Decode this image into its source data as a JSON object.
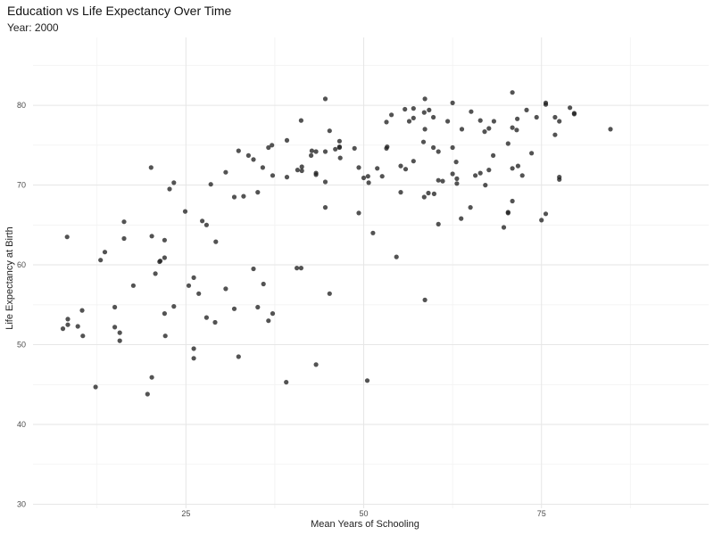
{
  "chart_data": {
    "type": "scatter",
    "title": "Education vs Life Expectancy Over Time",
    "subtitle": "Year: 2000",
    "xlabel": "Mean Years of Schooling",
    "ylabel": "Life Expectancy at Birth",
    "xlim": [
      3.5,
      98.5
    ],
    "ylim": [
      29.5,
      88.5
    ],
    "xticks": [
      25,
      50,
      75
    ],
    "yticks": [
      30,
      40,
      50,
      60,
      70,
      80
    ],
    "grid": true,
    "legend": "none",
    "point_color": "#222222",
    "points": [
      [
        7.7,
        52.0
      ],
      [
        8.3,
        63.5
      ],
      [
        8.4,
        53.2
      ],
      [
        8.4,
        52.5
      ],
      [
        9.8,
        52.3
      ],
      [
        10.4,
        54.3
      ],
      [
        10.5,
        51.1
      ],
      [
        12.3,
        44.7
      ],
      [
        13.0,
        60.6
      ],
      [
        13.6,
        61.6
      ],
      [
        15.0,
        54.7
      ],
      [
        15.0,
        52.2
      ],
      [
        15.7,
        51.5
      ],
      [
        15.7,
        50.5
      ],
      [
        16.3,
        65.4
      ],
      [
        16.3,
        63.3
      ],
      [
        17.6,
        57.4
      ],
      [
        19.6,
        43.8
      ],
      [
        20.2,
        45.9
      ],
      [
        20.1,
        72.2
      ],
      [
        20.2,
        63.6
      ],
      [
        20.7,
        58.9
      ],
      [
        21.3,
        60.4
      ],
      [
        21.4,
        60.5
      ],
      [
        22.0,
        63.1
      ],
      [
        22.0,
        60.9
      ],
      [
        22.0,
        53.9
      ],
      [
        22.1,
        51.1
      ],
      [
        22.7,
        69.5
      ],
      [
        23.3,
        70.3
      ],
      [
        23.3,
        54.8
      ],
      [
        24.9,
        66.7
      ],
      [
        25.4,
        57.4
      ],
      [
        26.1,
        58.4
      ],
      [
        26.1,
        49.5
      ],
      [
        26.1,
        48.3
      ],
      [
        26.8,
        56.4
      ],
      [
        27.3,
        65.5
      ],
      [
        27.9,
        65.0
      ],
      [
        27.9,
        53.4
      ],
      [
        28.5,
        70.1
      ],
      [
        29.2,
        62.9
      ],
      [
        29.1,
        52.8
      ],
      [
        30.6,
        71.6
      ],
      [
        30.6,
        57.0
      ],
      [
        31.8,
        68.5
      ],
      [
        31.8,
        54.5
      ],
      [
        32.4,
        74.3
      ],
      [
        32.4,
        48.5
      ],
      [
        33.1,
        68.6
      ],
      [
        33.8,
        73.7
      ],
      [
        34.5,
        73.2
      ],
      [
        34.5,
        59.5
      ],
      [
        35.1,
        54.7
      ],
      [
        35.1,
        69.1
      ],
      [
        35.8,
        72.2
      ],
      [
        35.9,
        57.6
      ],
      [
        36.6,
        74.7
      ],
      [
        36.6,
        53.0
      ],
      [
        37.1,
        75.0
      ],
      [
        37.2,
        53.9
      ],
      [
        37.2,
        71.2
      ],
      [
        39.2,
        75.6
      ],
      [
        39.2,
        71.0
      ],
      [
        39.1,
        45.3
      ],
      [
        40.6,
        59.6
      ],
      [
        40.7,
        71.9
      ],
      [
        41.2,
        59.6
      ],
      [
        41.3,
        71.8
      ],
      [
        41.3,
        72.3
      ],
      [
        41.2,
        78.1
      ],
      [
        42.6,
        73.7
      ],
      [
        42.7,
        74.3
      ],
      [
        43.3,
        71.3
      ],
      [
        43.3,
        74.2
      ],
      [
        43.3,
        71.5
      ],
      [
        43.3,
        47.5
      ],
      [
        44.6,
        80.8
      ],
      [
        44.6,
        74.2
      ],
      [
        44.6,
        67.2
      ],
      [
        44.6,
        70.4
      ],
      [
        45.2,
        56.4
      ],
      [
        45.2,
        76.8
      ],
      [
        46.0,
        74.5
      ],
      [
        46.6,
        75.5
      ],
      [
        46.6,
        74.8
      ],
      [
        46.6,
        74.7
      ],
      [
        46.7,
        73.4
      ],
      [
        48.7,
        74.6
      ],
      [
        49.3,
        72.2
      ],
      [
        49.3,
        66.5
      ],
      [
        50.0,
        70.9
      ],
      [
        50.5,
        45.5
      ],
      [
        50.6,
        71.1
      ],
      [
        50.7,
        70.3
      ],
      [
        51.3,
        64.0
      ],
      [
        51.9,
        72.1
      ],
      [
        52.6,
        71.1
      ],
      [
        53.2,
        77.9
      ],
      [
        53.2,
        74.6
      ],
      [
        53.3,
        74.8
      ],
      [
        53.9,
        78.8
      ],
      [
        54.6,
        61.0
      ],
      [
        55.2,
        72.4
      ],
      [
        55.2,
        69.1
      ],
      [
        55.9,
        72.0
      ],
      [
        55.8,
        79.5
      ],
      [
        56.4,
        78.0
      ],
      [
        57.0,
        78.4
      ],
      [
        57.0,
        79.6
      ],
      [
        57.0,
        73.0
      ],
      [
        58.5,
        79.1
      ],
      [
        58.4,
        75.4
      ],
      [
        58.5,
        68.5
      ],
      [
        58.6,
        80.8
      ],
      [
        58.6,
        55.6
      ],
      [
        58.6,
        77.0
      ],
      [
        59.2,
        79.4
      ],
      [
        59.1,
        69.0
      ],
      [
        59.9,
        68.9
      ],
      [
        59.8,
        78.5
      ],
      [
        59.8,
        74.7
      ],
      [
        60.5,
        74.2
      ],
      [
        60.5,
        70.6
      ],
      [
        60.5,
        65.1
      ],
      [
        61.1,
        70.5
      ],
      [
        61.8,
        78.0
      ],
      [
        62.5,
        80.3
      ],
      [
        62.5,
        74.7
      ],
      [
        62.5,
        71.4
      ],
      [
        63.0,
        72.9
      ],
      [
        63.1,
        70.2
      ],
      [
        63.1,
        70.8
      ],
      [
        63.7,
        65.8
      ],
      [
        63.8,
        77.0
      ],
      [
        65.1,
        79.2
      ],
      [
        65.0,
        67.2
      ],
      [
        65.7,
        71.2
      ],
      [
        66.4,
        71.5
      ],
      [
        66.4,
        78.1
      ],
      [
        67.0,
        76.7
      ],
      [
        67.1,
        70.0
      ],
      [
        67.6,
        77.1
      ],
      [
        67.6,
        71.9
      ],
      [
        68.2,
        73.7
      ],
      [
        68.3,
        78.0
      ],
      [
        69.7,
        64.7
      ],
      [
        70.3,
        75.2
      ],
      [
        70.3,
        66.6
      ],
      [
        70.3,
        66.5
      ],
      [
        70.9,
        77.2
      ],
      [
        70.9,
        72.1
      ],
      [
        70.9,
        81.6
      ],
      [
        70.9,
        68.0
      ],
      [
        71.5,
        76.9
      ],
      [
        71.7,
        72.4
      ],
      [
        71.6,
        78.3
      ],
      [
        72.3,
        71.2
      ],
      [
        72.9,
        79.4
      ],
      [
        73.6,
        74.0
      ],
      [
        74.3,
        78.5
      ],
      [
        75.0,
        65.6
      ],
      [
        75.6,
        66.4
      ],
      [
        75.6,
        80.1
      ],
      [
        75.6,
        80.3
      ],
      [
        76.9,
        76.3
      ],
      [
        76.9,
        78.5
      ],
      [
        77.5,
        70.7
      ],
      [
        77.5,
        71.0
      ],
      [
        77.5,
        78.0
      ],
      [
        79.0,
        79.7
      ],
      [
        79.6,
        79.0
      ],
      [
        79.6,
        78.9
      ],
      [
        84.7,
        77.0
      ]
    ]
  }
}
